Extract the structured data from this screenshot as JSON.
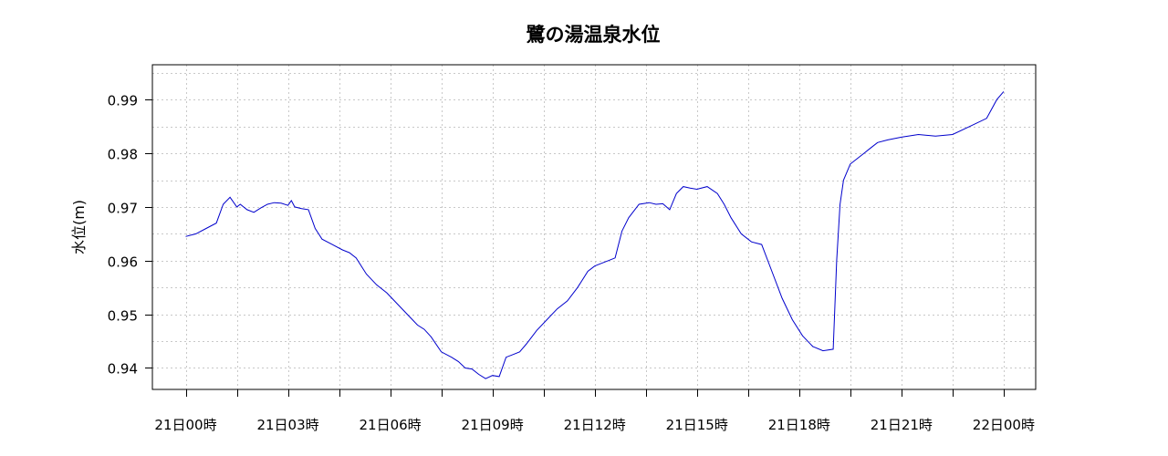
{
  "chart_data": {
    "type": "line",
    "title": "鷺の湯温泉水位",
    "xlabel": "",
    "ylabel": "水位(m)",
    "x_ticks": [
      "21日00時",
      "21日03時",
      "21日06時",
      "21日09時",
      "21日12時",
      "21日15時",
      "21日18時",
      "21日21時",
      "22日00時"
    ],
    "x_range_hours": [
      -1,
      25
    ],
    "ylim": [
      0.936,
      0.9965
    ],
    "y_ticks": [
      "0.94",
      "0.95",
      "0.96",
      "0.97",
      "0.98",
      "0.99"
    ],
    "y_tick_values": [
      0.94,
      0.95,
      0.96,
      0.97,
      0.98,
      0.99
    ],
    "grid": true,
    "grid_style": "dotted",
    "line_color": "#0000cc",
    "series": [
      {
        "x": [
          0,
          0.3,
          0.6,
          0.9,
          1.1,
          1.3,
          1.5,
          1.6,
          1.8,
          2.0,
          2.2,
          2.4,
          2.6,
          2.8,
          3.0,
          3.1,
          3.2,
          3.4,
          3.6,
          3.8,
          3.9,
          4.0,
          4.3,
          4.6,
          4.8,
          5.0,
          5.3,
          5.6,
          5.9,
          6.2,
          6.5,
          6.8,
          7.0,
          7.2,
          7.5,
          7.8,
          8.0,
          8.2,
          8.4,
          8.6,
          8.8,
          9.0,
          9.2,
          9.4,
          9.6,
          9.8,
          10.0,
          10.3,
          10.6,
          10.9,
          11.2,
          11.5,
          11.8,
          12.0,
          12.2,
          12.4,
          12.6,
          12.8,
          13.0,
          13.3,
          13.6,
          13.8,
          14.0,
          14.2,
          14.4,
          14.6,
          14.8,
          15.0,
          15.3,
          15.6,
          15.8,
          16.0,
          16.3,
          16.6,
          16.9,
          17.2,
          17.5,
          17.8,
          18.1,
          18.4,
          18.7,
          19.0,
          19.1,
          19.2,
          19.3,
          19.5,
          19.7,
          19.9,
          20.1,
          20.3,
          20.6,
          21.0,
          21.5,
          22.0,
          22.5,
          23.0,
          23.5,
          23.8,
          24.0
        ],
        "y": [
          0.9645,
          0.965,
          0.966,
          0.967,
          0.9705,
          0.9718,
          0.97,
          0.9705,
          0.9695,
          0.969,
          0.9698,
          0.9705,
          0.9708,
          0.9707,
          0.9703,
          0.9712,
          0.97,
          0.9697,
          0.9695,
          0.966,
          0.965,
          0.964,
          0.963,
          0.962,
          0.9615,
          0.9605,
          0.9575,
          0.9555,
          0.954,
          0.952,
          0.95,
          0.948,
          0.9472,
          0.9458,
          0.943,
          0.942,
          0.9412,
          0.94,
          0.9398,
          0.9388,
          0.938,
          0.9386,
          0.9384,
          0.942,
          0.9425,
          0.943,
          0.9445,
          0.947,
          0.949,
          0.951,
          0.9525,
          0.955,
          0.958,
          0.959,
          0.9595,
          0.96,
          0.9605,
          0.9655,
          0.968,
          0.9705,
          0.9708,
          0.9705,
          0.9706,
          0.9695,
          0.9725,
          0.9738,
          0.9735,
          0.9733,
          0.9738,
          0.9725,
          0.9705,
          0.968,
          0.965,
          0.9635,
          0.963,
          0.958,
          0.953,
          0.949,
          0.946,
          0.944,
          0.9432,
          0.9435,
          0.96,
          0.9705,
          0.975,
          0.978,
          0.979,
          0.98,
          0.981,
          0.982,
          0.9825,
          0.983,
          0.9835,
          0.9832,
          0.9835,
          0.985,
          0.9865,
          0.99,
          0.9915
        ]
      }
    ]
  }
}
